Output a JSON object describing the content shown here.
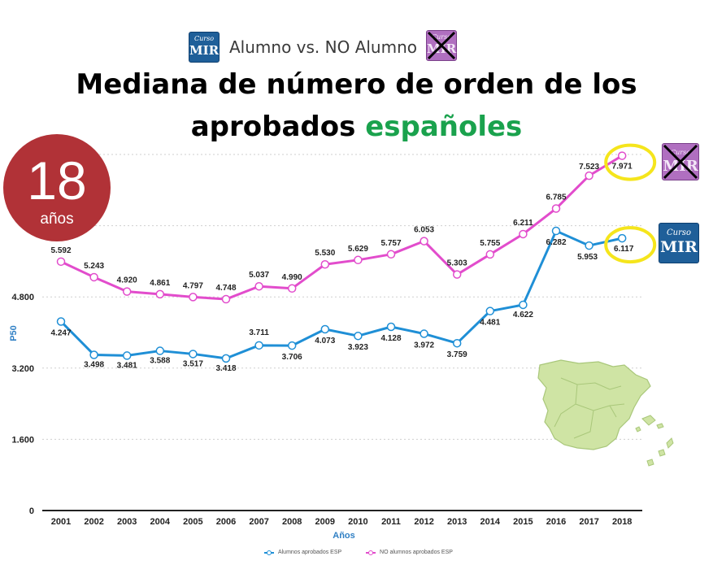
{
  "header": {
    "subtitle": "Alumno vs. NO Alumno",
    "logo_text_top": "Curso",
    "logo_text_main": "MIR"
  },
  "title": {
    "line1": "Mediana de número de orden de los",
    "line2_black": "aprobados ",
    "line2_green": "españoles"
  },
  "badge": {
    "number": "18",
    "label": "años"
  },
  "colors": {
    "blue": "#1f8fd6",
    "magenta": "#e24ccc",
    "badge": "#b13237",
    "title_green": "#1aa24d",
    "highlight": "#f5e51c"
  },
  "chart_data": {
    "type": "line",
    "xlabel": "Años",
    "ylabel": "P50",
    "ylim": [
      0,
      8000
    ],
    "yticks": [
      0,
      1600,
      3200,
      4800
    ],
    "ytick_labels": [
      "0",
      "1.600",
      "3.200",
      "4.800"
    ],
    "categories": [
      "2001",
      "2002",
      "2003",
      "2004",
      "2005",
      "2006",
      "2007",
      "2008",
      "2009",
      "2010",
      "2011",
      "2012",
      "2013",
      "2014",
      "2015",
      "2016",
      "2017",
      "2018"
    ],
    "series": [
      {
        "name": "Alumnos aprobados ESP",
        "color": "#1f8fd6",
        "values": [
          4247,
          3498,
          3481,
          3588,
          3517,
          3418,
          3711,
          3706,
          4073,
          3923,
          4128,
          3972,
          3759,
          4481,
          4622,
          6282,
          5953,
          6117
        ],
        "labels": [
          "4.247",
          "3.498",
          "3.481",
          "3.588",
          "3.517",
          "3.418",
          "3.711",
          "3.706",
          "4.073",
          "3.923",
          "4.128",
          "3.972",
          "3.759",
          "4.481",
          "4.622",
          "6.282",
          "5.953",
          "6.117"
        ]
      },
      {
        "name": "NO alumnos aprobados ESP",
        "color": "#e24ccc",
        "values": [
          5592,
          5243,
          4920,
          4861,
          4797,
          4748,
          5037,
          4990,
          5530,
          5629,
          5757,
          6053,
          5303,
          5755,
          6211,
          6785,
          7523,
          7971
        ],
        "labels": [
          "5.592",
          "5.243",
          "4.920",
          "4.861",
          "4.797",
          "4.748",
          "5.037",
          "4.990",
          "5.530",
          "5.629",
          "5.757",
          "6.053",
          "5.303",
          "5.755",
          "6.211",
          "6.785",
          "7.523",
          "7.971"
        ]
      }
    ],
    "grid": true,
    "legend_position": "bottom-center"
  }
}
